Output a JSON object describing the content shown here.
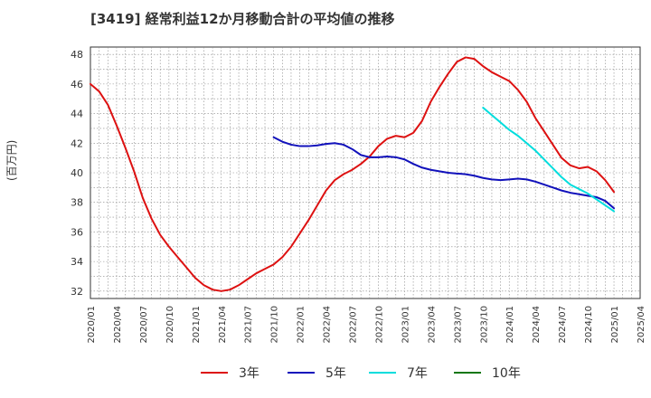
{
  "chart_data": {
    "type": "line",
    "title": "[3419]  経常利益12か月移動合計の平均値の推移",
    "ylabel": "(百万円)",
    "xlabel": "",
    "ylim": [
      31.5,
      48.5
    ],
    "yticks": [
      32,
      34,
      36,
      38,
      40,
      42,
      44,
      46,
      48
    ],
    "xlim": [
      "2020-01",
      "2025-04"
    ],
    "xticks": [
      "2020/01",
      "2020/04",
      "2020/07",
      "2020/10",
      "2021/01",
      "2021/04",
      "2021/07",
      "2021/10",
      "2022/01",
      "2022/04",
      "2022/07",
      "2022/10",
      "2023/01",
      "2023/04",
      "2023/07",
      "2023/10",
      "2024/01",
      "2024/04",
      "2024/07",
      "2024/10",
      "2025/01",
      "2025/04"
    ],
    "grid": true,
    "legend_position": "bottom",
    "series": [
      {
        "name": "3年",
        "color": "#dd1111",
        "x": [
          "2020/01",
          "2020/02",
          "2020/03",
          "2020/04",
          "2020/05",
          "2020/06",
          "2020/07",
          "2020/08",
          "2020/09",
          "2020/10",
          "2020/11",
          "2020/12",
          "2021/01",
          "2021/02",
          "2021/03",
          "2021/04",
          "2021/05",
          "2021/06",
          "2021/07",
          "2021/08",
          "2021/09",
          "2021/10",
          "2021/11",
          "2021/12",
          "2022/01",
          "2022/02",
          "2022/03",
          "2022/04",
          "2022/05",
          "2022/06",
          "2022/07",
          "2022/08",
          "2022/09",
          "2022/10",
          "2022/11",
          "2022/12",
          "2023/01",
          "2023/02",
          "2023/03",
          "2023/04",
          "2023/05",
          "2023/06",
          "2023/07",
          "2023/08",
          "2023/09",
          "2023/10",
          "2023/11",
          "2023/12",
          "2024/01",
          "2024/02",
          "2024/03",
          "2024/04",
          "2024/05",
          "2024/06",
          "2024/07",
          "2024/08",
          "2024/09",
          "2024/10",
          "2024/11",
          "2024/12",
          "2025/01"
        ],
        "values": [
          46.0,
          45.5,
          44.6,
          43.2,
          41.7,
          40.1,
          38.3,
          36.9,
          35.8,
          35.0,
          34.3,
          33.6,
          32.9,
          32.4,
          32.1,
          32.0,
          32.1,
          32.4,
          32.8,
          33.2,
          33.5,
          33.8,
          34.3,
          35.0,
          35.9,
          36.8,
          37.8,
          38.8,
          39.5,
          39.9,
          40.2,
          40.6,
          41.1,
          41.8,
          42.3,
          42.5,
          42.4,
          42.7,
          43.5,
          44.8,
          45.8,
          46.7,
          47.5,
          47.8,
          47.7,
          47.2,
          46.8,
          46.5,
          46.2,
          45.6,
          44.8,
          43.7,
          42.8,
          41.9,
          41.0,
          40.5,
          40.3,
          40.4,
          40.1,
          39.5,
          38.7
        ]
      },
      {
        "name": "5年",
        "color": "#1111bb",
        "x": [
          "2021/10",
          "2021/11",
          "2021/12",
          "2022/01",
          "2022/02",
          "2022/03",
          "2022/04",
          "2022/05",
          "2022/06",
          "2022/07",
          "2022/08",
          "2022/09",
          "2022/10",
          "2022/11",
          "2022/12",
          "2023/01",
          "2023/02",
          "2023/03",
          "2023/04",
          "2023/05",
          "2023/06",
          "2023/07",
          "2023/08",
          "2023/09",
          "2023/10",
          "2023/11",
          "2023/12",
          "2024/01",
          "2024/02",
          "2024/03",
          "2024/04",
          "2024/05",
          "2024/06",
          "2024/07",
          "2024/08",
          "2024/09",
          "2024/10",
          "2024/11",
          "2024/12",
          "2025/01"
        ],
        "values": [
          42.4,
          42.1,
          41.9,
          41.8,
          41.8,
          41.85,
          41.95,
          42.0,
          41.9,
          41.6,
          41.2,
          41.05,
          41.05,
          41.1,
          41.05,
          40.9,
          40.6,
          40.35,
          40.2,
          40.1,
          40.0,
          39.95,
          39.9,
          39.8,
          39.65,
          39.55,
          39.5,
          39.55,
          39.6,
          39.55,
          39.4,
          39.2,
          39.0,
          38.8,
          38.65,
          38.55,
          38.45,
          38.35,
          38.1,
          37.6
        ]
      },
      {
        "name": "7年",
        "color": "#00dddd",
        "x": [
          "2023/10",
          "2023/11",
          "2023/12",
          "2024/01",
          "2024/02",
          "2024/03",
          "2024/04",
          "2024/05",
          "2024/06",
          "2024/07",
          "2024/08",
          "2024/09",
          "2024/10",
          "2024/11",
          "2024/12",
          "2025/01"
        ],
        "values": [
          44.4,
          43.9,
          43.4,
          42.9,
          42.5,
          42.0,
          41.5,
          40.9,
          40.3,
          39.7,
          39.2,
          38.9,
          38.6,
          38.2,
          37.8,
          37.4
        ]
      },
      {
        "name": "10年",
        "color": "#117711",
        "x": [],
        "values": []
      }
    ]
  }
}
